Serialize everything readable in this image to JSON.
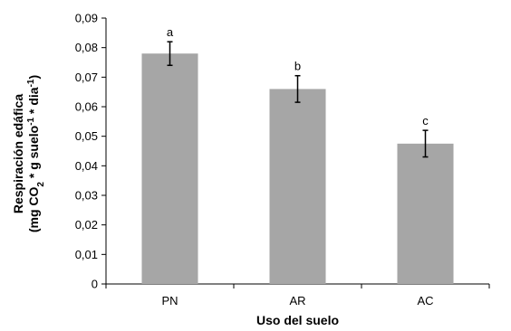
{
  "chart_data": {
    "type": "bar",
    "categories": [
      "PN",
      "AR",
      "AC"
    ],
    "values": [
      0.078,
      0.066,
      0.0475
    ],
    "error": [
      0.004,
      0.0045,
      0.0045
    ],
    "significance_labels": [
      "a",
      "b",
      "c"
    ],
    "title": "",
    "xlabel": "Uso del suelo",
    "ylabel": {
      "line1": "Respiración edáfica",
      "line2_prefix": "(mg CO",
      "line2_sub": "2",
      "line2_mid1": " * g suelo",
      "line2_sup1": "-1",
      "line2_mid2": " * dia",
      "line2_sup2": "-1",
      "line2_suffix": ")"
    },
    "ylim": [
      0,
      0.09
    ],
    "yticks": [
      "0",
      "0,01",
      "0,02",
      "0,03",
      "0,04",
      "0,05",
      "0,06",
      "0,07",
      "0,08",
      "0,09"
    ],
    "grid": false,
    "bar_color": "#a6a6a6",
    "error_color": "#000000"
  }
}
